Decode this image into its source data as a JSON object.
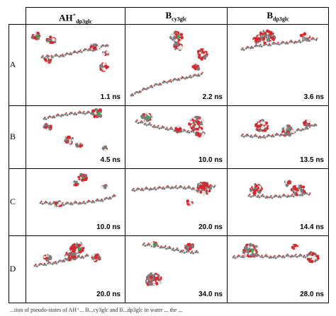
{
  "columns": [
    {
      "main": "AH",
      "sup": "+",
      "sub": "dp3glc"
    },
    {
      "main": "B",
      "sup": "",
      "sub": "cy3glc"
    },
    {
      "main": "B",
      "sup": "",
      "sub": "dp3glc"
    }
  ],
  "rows": [
    {
      "label": "A",
      "times": [
        "1.1 ns",
        "2.2 ns",
        "3.6 ns"
      ]
    },
    {
      "label": "B",
      "times": [
        "4.5 ns",
        "10.0 ns",
        "13.5 ns"
      ]
    },
    {
      "label": "C",
      "times": [
        "10.0 ns",
        "20.0 ns",
        "14.4 ns"
      ]
    },
    {
      "label": "D",
      "times": [
        "20.0 ns",
        "34.0 ns",
        "28.0 ns"
      ]
    }
  ],
  "molecule_colors": {
    "oxygen": "#d9262b",
    "carbon": "#7d7d7d",
    "hydrogen": "#e6e6e6",
    "chlorine": "#2fa84f"
  },
  "caption": "...tion of pseudo-states of AH⁺... B...cy3glc and B...dp3glc in water ... the ..."
}
